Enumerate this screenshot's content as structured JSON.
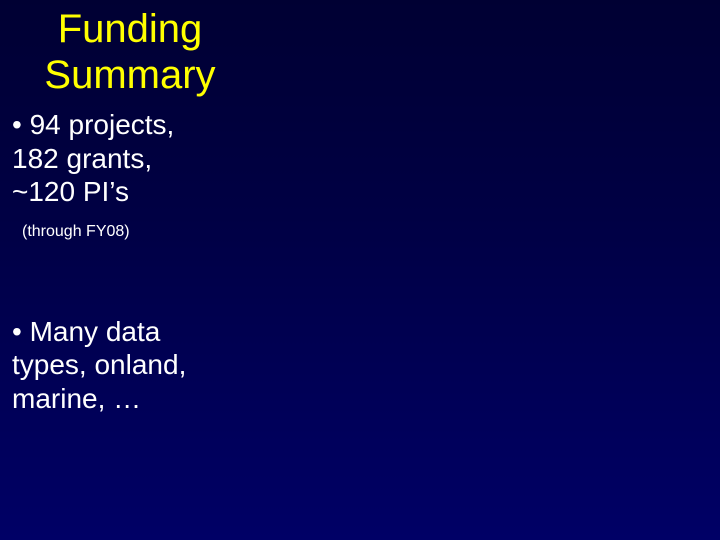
{
  "title_color": "#ffff00",
  "body_color": "#ffffff",
  "title_line1": "Funding",
  "title_line2": "Summary",
  "bullet1_line1": "• 94 projects,",
  "bullet1_line2": "182 grants,",
  "bullet1_line3": "~120 PI’s",
  "note": "(through FY08)",
  "bullet2_line1": "• Many data",
  "bullet2_line2": "types, onland,",
  "bullet2_line3": "marine, …"
}
